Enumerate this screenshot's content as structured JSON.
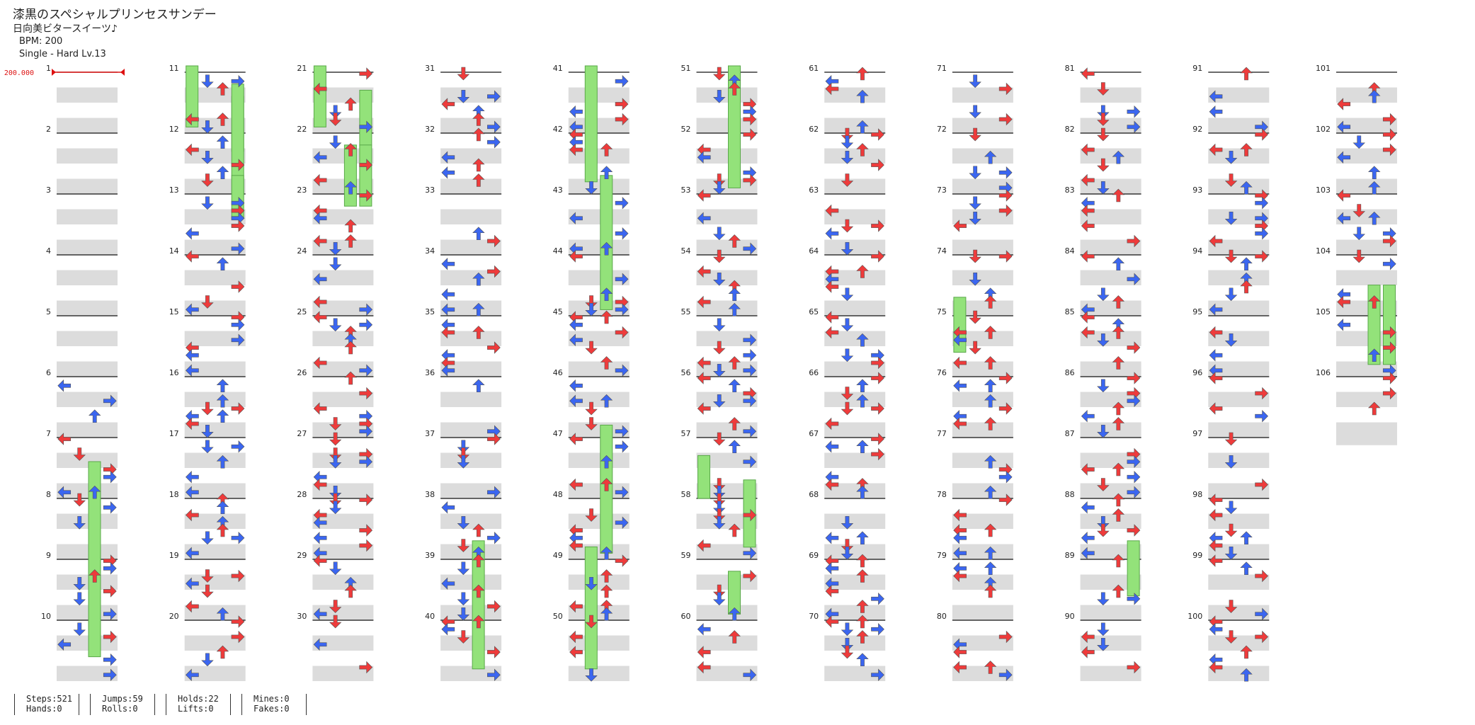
{
  "song": {
    "title": "漆黒のスペシャルプリンセスサンデー",
    "artist": "日向美ビタースイーツ♪",
    "bpm": "BPM: 200",
    "difficulty": "Single - Hard  Lv.13"
  },
  "chart": {
    "bpm_marker": "200.000",
    "measures": 106,
    "measures_per_column": 10,
    "colors": {
      "note_red": "#ee3b3b",
      "note_blue": "#3b66f0",
      "hold_green": "#93e27a",
      "lane_gray": "#dcdcdc",
      "bpm_red": "#dd1111"
    }
  },
  "stats": {
    "steps": "Steps:521",
    "hands": "Hands:0",
    "jumps": "Jumps:59",
    "rolls": "Rolls:0",
    "holds": "Holds:22",
    "lifts": "Lifts:0",
    "mines": "Mines:0",
    "fakes": "Fakes:0"
  }
}
